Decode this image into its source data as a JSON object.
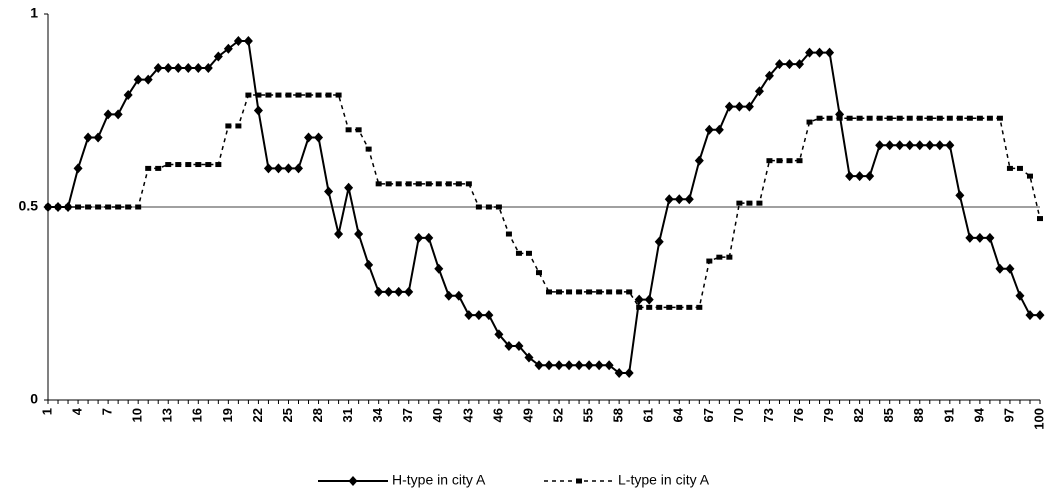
{
  "chart_data": {
    "type": "line",
    "x": [
      1,
      2,
      3,
      4,
      5,
      6,
      7,
      8,
      9,
      10,
      11,
      12,
      13,
      14,
      15,
      16,
      17,
      18,
      19,
      20,
      21,
      22,
      23,
      24,
      25,
      26,
      27,
      28,
      29,
      30,
      31,
      32,
      33,
      34,
      35,
      36,
      37,
      38,
      39,
      40,
      41,
      42,
      43,
      44,
      45,
      46,
      47,
      48,
      49,
      50,
      51,
      52,
      53,
      54,
      55,
      56,
      57,
      58,
      59,
      60,
      61,
      62,
      63,
      64,
      65,
      66,
      67,
      68,
      69,
      70,
      71,
      72,
      73,
      74,
      75,
      76,
      77,
      78,
      79,
      80,
      81,
      82,
      83,
      84,
      85,
      86,
      87,
      88,
      89,
      90,
      91,
      92,
      93,
      94,
      95,
      96,
      97,
      98,
      99,
      100
    ],
    "xlim": [
      1,
      100
    ],
    "xticks": [
      1,
      4,
      7,
      10,
      13,
      16,
      19,
      22,
      25,
      28,
      31,
      34,
      37,
      40,
      43,
      46,
      49,
      52,
      55,
      58,
      61,
      64,
      67,
      70,
      73,
      76,
      79,
      82,
      85,
      88,
      91,
      94,
      97,
      100
    ],
    "ylim": [
      0,
      1
    ],
    "yticks": [
      0,
      0.5,
      1
    ],
    "grid": true,
    "legend": "bottom",
    "series": [
      {
        "name": "H-type in city A",
        "color": "#000000",
        "marker": "diamond",
        "dash": false,
        "values": [
          0.5,
          0.5,
          0.5,
          0.6,
          0.68,
          0.68,
          0.74,
          0.74,
          0.79,
          0.83,
          0.83,
          0.86,
          0.86,
          0.86,
          0.86,
          0.86,
          0.86,
          0.89,
          0.91,
          0.93,
          0.93,
          0.75,
          0.6,
          0.6,
          0.6,
          0.6,
          0.68,
          0.68,
          0.54,
          0.43,
          0.55,
          0.43,
          0.35,
          0.28,
          0.28,
          0.28,
          0.28,
          0.42,
          0.42,
          0.34,
          0.27,
          0.27,
          0.22,
          0.22,
          0.22,
          0.17,
          0.14,
          0.14,
          0.11,
          0.09,
          0.09,
          0.09,
          0.09,
          0.09,
          0.09,
          0.09,
          0.09,
          0.07,
          0.07,
          0.26,
          0.26,
          0.41,
          0.52,
          0.52,
          0.52,
          0.62,
          0.7,
          0.7,
          0.76,
          0.76,
          0.76,
          0.8,
          0.84,
          0.87,
          0.87,
          0.87,
          0.9,
          0.9,
          0.9,
          0.74,
          0.58,
          0.58,
          0.58,
          0.66,
          0.66,
          0.66,
          0.66,
          0.66,
          0.66,
          0.66,
          0.66,
          0.53,
          0.42,
          0.42,
          0.42,
          0.34,
          0.34,
          0.27,
          0.22,
          0.22
        ]
      },
      {
        "name": "L-type in city A",
        "color": "#000000",
        "marker": "square",
        "dash": true,
        "values": [
          0.5,
          0.5,
          0.5,
          0.5,
          0.5,
          0.5,
          0.5,
          0.5,
          0.5,
          0.5,
          0.6,
          0.6,
          0.61,
          0.61,
          0.61,
          0.61,
          0.61,
          0.61,
          0.71,
          0.71,
          0.79,
          0.79,
          0.79,
          0.79,
          0.79,
          0.79,
          0.79,
          0.79,
          0.79,
          0.79,
          0.7,
          0.7,
          0.65,
          0.56,
          0.56,
          0.56,
          0.56,
          0.56,
          0.56,
          0.56,
          0.56,
          0.56,
          0.56,
          0.5,
          0.5,
          0.5,
          0.43,
          0.38,
          0.38,
          0.33,
          0.28,
          0.28,
          0.28,
          0.28,
          0.28,
          0.28,
          0.28,
          0.28,
          0.28,
          0.24,
          0.24,
          0.24,
          0.24,
          0.24,
          0.24,
          0.24,
          0.36,
          0.37,
          0.37,
          0.51,
          0.51,
          0.51,
          0.62,
          0.62,
          0.62,
          0.62,
          0.72,
          0.73,
          0.73,
          0.73,
          0.73,
          0.73,
          0.73,
          0.73,
          0.73,
          0.73,
          0.73,
          0.73,
          0.73,
          0.73,
          0.73,
          0.73,
          0.73,
          0.73,
          0.73,
          0.73,
          0.6,
          0.6,
          0.58,
          0.47
        ]
      }
    ]
  }
}
